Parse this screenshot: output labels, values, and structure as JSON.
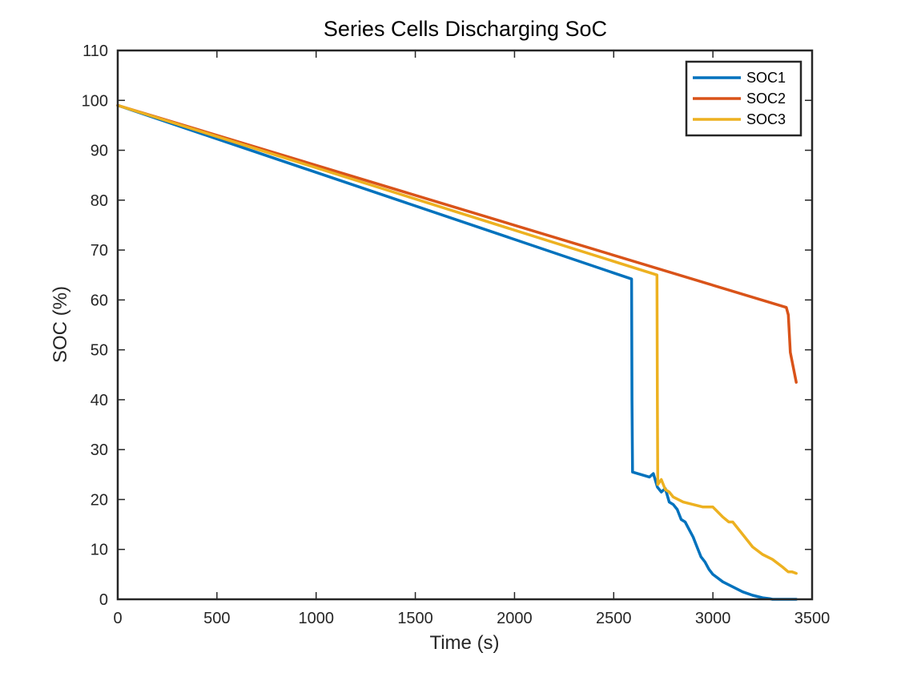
{
  "chart_data": {
    "type": "line",
    "title": "Series Cells Discharging SoC",
    "xlabel": "Time (s)",
    "ylabel": "SOC (%)",
    "xlim": [
      0,
      3500
    ],
    "ylim": [
      0,
      110
    ],
    "xticks": [
      0,
      500,
      1000,
      1500,
      2000,
      2500,
      3000,
      3500
    ],
    "yticks": [
      0,
      10,
      20,
      30,
      40,
      50,
      60,
      70,
      80,
      90,
      100,
      110
    ],
    "grid": false,
    "legend_position": "top-right",
    "series": [
      {
        "name": "SOC1",
        "color": "#0072BD",
        "x": [
          0,
          2590,
          2592,
          2595,
          2680,
          2700,
          2720,
          2740,
          2760,
          2780,
          2800,
          2820,
          2840,
          2860,
          2880,
          2900,
          2920,
          2940,
          2960,
          2980,
          3000,
          3050,
          3100,
          3150,
          3200,
          3250,
          3290,
          3300,
          3420
        ],
        "y": [
          99,
          64.2,
          40,
          25.5,
          24.5,
          25.2,
          22.5,
          21.5,
          22.2,
          19.5,
          19,
          18,
          16,
          15.5,
          14,
          12.5,
          10.5,
          8.5,
          7.5,
          6,
          5,
          3.5,
          2.5,
          1.5,
          0.8,
          0.3,
          0.1,
          0,
          0
        ]
      },
      {
        "name": "SOC2",
        "color": "#D95319",
        "x": [
          0,
          3370,
          3380,
          3390,
          3420
        ],
        "y": [
          99,
          58.5,
          57,
          49.5,
          43.5
        ]
      },
      {
        "name": "SOC3",
        "color": "#EDB120",
        "x": [
          0,
          2718,
          2720,
          2722,
          2740,
          2760,
          2780,
          2800,
          2850,
          2900,
          2950,
          3000,
          3050,
          3080,
          3100,
          3150,
          3200,
          3250,
          3300,
          3350,
          3380,
          3400,
          3420
        ],
        "y": [
          99,
          65,
          40,
          23,
          24,
          22,
          21.5,
          20.5,
          19.5,
          19,
          18.5,
          18.5,
          16.5,
          15.5,
          15.5,
          13,
          10.5,
          9,
          8,
          6.5,
          5.5,
          5.5,
          5.2
        ]
      }
    ]
  }
}
